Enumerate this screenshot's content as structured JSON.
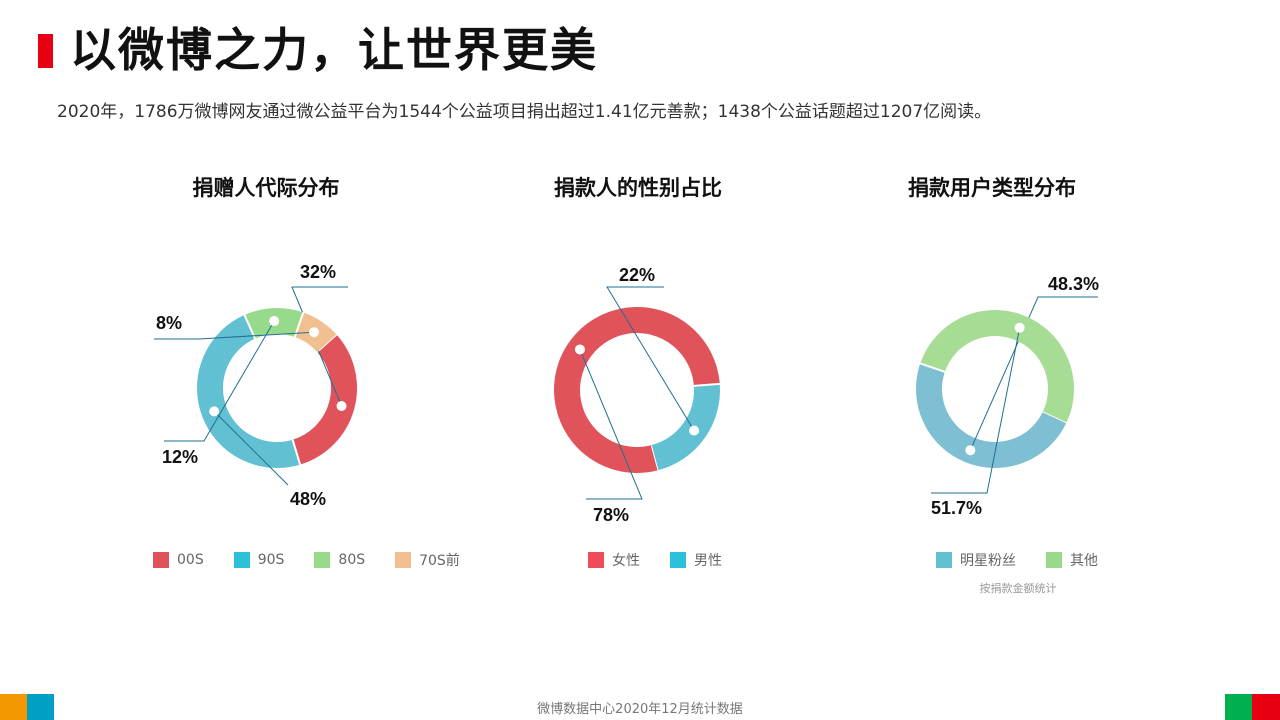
{
  "page": {
    "title": "以微博之力，让世界更美",
    "subtitle": "2020年，1786万微博网友通过微公益平台为1544个公益项目捐出超过1.41亿元善款；1438个公益话题超过1207亿阅读。",
    "footer": "微博数据中心2020年12月统计数据",
    "accent_color": "#e60012",
    "corner_colors": [
      "#f39800",
      "#00a0c6",
      "#00b050",
      "#e60012"
    ]
  },
  "chart_data": [
    {
      "type": "pie",
      "title": "捐赠人代际分布",
      "categories": [
        "00S",
        "90S",
        "80S",
        "70S前"
      ],
      "values": [
        32,
        48,
        12,
        8
      ],
      "labels": [
        "32%",
        "48%",
        "12%",
        "8%"
      ],
      "colors": [
        "#e0535a",
        "#62c0d3",
        "#98da8c",
        "#f2c090"
      ],
      "legend": "bottom"
    },
    {
      "type": "pie",
      "title": "捐款人的性别占比",
      "categories": [
        "女性",
        "男性"
      ],
      "values": [
        78,
        22
      ],
      "labels": [
        "78%",
        "22%"
      ],
      "colors": [
        "#e0535a",
        "#62c0d3"
      ],
      "legend": "bottom"
    },
    {
      "type": "pie",
      "title": "捐款用户类型分布",
      "categories": [
        "明星粉丝",
        "其他"
      ],
      "values": [
        48.3,
        51.7
      ],
      "labels": [
        "48.3%",
        "51.7%"
      ],
      "colors": [
        "#7fbfd3",
        "#a7dc94"
      ],
      "legend": "bottom",
      "note": "按捐款金额统计"
    }
  ]
}
